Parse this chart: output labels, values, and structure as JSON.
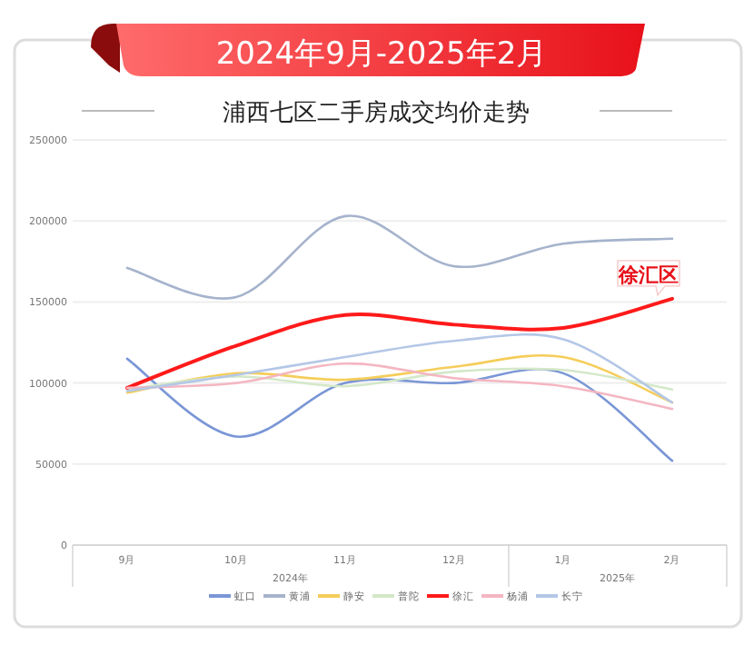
{
  "chart_data": {
    "type": "line",
    "title": "2024年9月-2025年2月",
    "subtitle": "浦西七区二手房成交均价走势",
    "categories": [
      "9月",
      "10月",
      "11月",
      "12月",
      "1月",
      "2月"
    ],
    "series": [
      {
        "name": "虹口",
        "color": "#7a96d6",
        "values": [
          115000,
          67000,
          100000,
          100000,
          106000,
          52000
        ]
      },
      {
        "name": "黄浦",
        "color": "#a5b3cc",
        "values": [
          171000,
          153000,
          203000,
          172000,
          186000,
          189000
        ]
      },
      {
        "name": "静安",
        "color": "#f5cd5a",
        "values": [
          94000,
          106000,
          102000,
          110000,
          116000,
          88000
        ]
      },
      {
        "name": "普陀",
        "color": "#d4e8c8",
        "values": [
          96000,
          104000,
          98000,
          107000,
          108000,
          96000
        ]
      },
      {
        "name": "徐汇",
        "color": "#ff1a1a",
        "values": [
          97000,
          123000,
          142000,
          136000,
          134000,
          152000
        ]
      },
      {
        "name": "杨浦",
        "color": "#f4b6c2",
        "values": [
          97000,
          100000,
          112000,
          103000,
          98000,
          84000
        ]
      },
      {
        "name": "长宁",
        "color": "#b4c7e7",
        "values": [
          95000,
          105000,
          116000,
          126000,
          127000,
          88000
        ]
      }
    ],
    "ylim": [
      0,
      250000
    ],
    "yticks": [
      0,
      50000,
      100000,
      150000,
      200000,
      250000
    ],
    "grid": "y",
    "legend": "bottom",
    "marker": "none",
    "line_style": "solid",
    "annotations": [
      {
        "text": "徐汇区",
        "x": "2月",
        "y": 152000
      },
      "2024年",
      "2025年"
    ]
  }
}
